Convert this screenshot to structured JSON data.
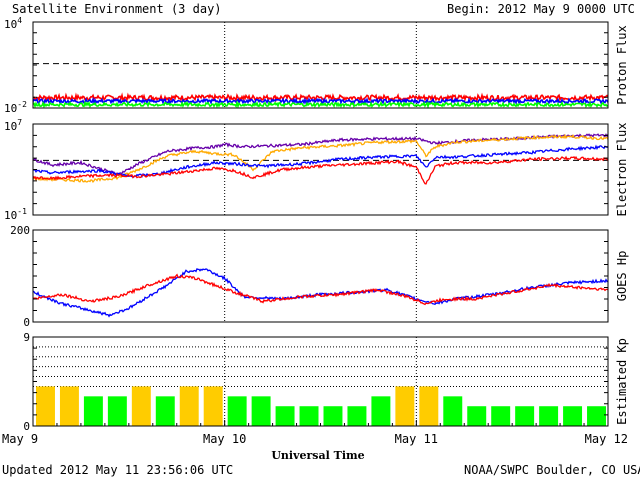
{
  "header": {
    "title": "Satellite Environment (3 day)",
    "begin": "Begin:  2012 May 9 0000 UTC"
  },
  "footer": {
    "updated": "Updated 2012 May 11 23:56:06 UTC",
    "credit": "NOAA/SWPC Boulder, CO USA"
  },
  "colors": {
    "red": "#ff0000",
    "blue": "#0000ff",
    "green": "#00ff00",
    "orange": "#ffaa00",
    "purple": "#6600aa",
    "yellow": "#ffcc00"
  },
  "chart_data": [
    {
      "type": "line",
      "name": "proton-flux",
      "ylabel": "Proton Flux",
      "yscale": "log",
      "yticks": [
        {
          "base": "10",
          "exp": "4"
        },
        {
          "base": "10",
          "exp": "-2"
        }
      ],
      "ylim_log10": [
        -2.2,
        4
      ],
      "threshold_log10": 1,
      "series": [
        {
          "color": "#ff0000",
          "level_log10": -1.45,
          "noise": 0.35
        },
        {
          "color": "#0000ff",
          "level_log10": -1.7,
          "noise": 0.25
        },
        {
          "color": "#00ff00",
          "level_log10": -1.95,
          "noise": 0.25
        }
      ]
    },
    {
      "type": "line",
      "name": "electron-flux",
      "ylabel": "Electron Flux",
      "yscale": "log",
      "yticks": [
        {
          "base": "10",
          "exp": "7"
        },
        {
          "base": "10",
          "exp": "-1"
        }
      ],
      "ylim_log10": [
        -1,
        7
      ],
      "threshold_log10": 3.8,
      "series": [
        {
          "color": "#6600aa",
          "x": [
            0,
            0.1,
            0.25,
            0.4,
            0.45,
            0.55,
            0.7,
            0.85,
            0.95,
            1.0,
            1.1,
            1.25,
            1.4,
            1.6,
            1.8,
            2.0,
            2.1,
            2.3,
            2.5,
            2.7,
            2.9,
            3.0
          ],
          "y": [
            3.9,
            3.4,
            3.6,
            2.8,
            2.6,
            3.5,
            4.6,
            4.9,
            5.0,
            5.2,
            5.0,
            5.1,
            5.2,
            5.6,
            5.7,
            5.7,
            5.3,
            5.6,
            5.7,
            5.9,
            6.0,
            6.0
          ]
        },
        {
          "color": "#ffaa00",
          "x": [
            0,
            0.15,
            0.3,
            0.45,
            0.55,
            0.7,
            0.85,
            0.95,
            1.05,
            1.15,
            1.25,
            1.4,
            1.6,
            1.8,
            2.0,
            2.05,
            2.1,
            2.2,
            2.4,
            2.6,
            2.8,
            3.0
          ],
          "y": [
            2.2,
            2.1,
            2.0,
            2.3,
            3.0,
            4.2,
            4.6,
            4.4,
            4.3,
            3.0,
            4.6,
            4.9,
            5.1,
            5.4,
            5.5,
            4.2,
            5.0,
            5.4,
            5.6,
            5.8,
            5.9,
            5.7
          ]
        },
        {
          "color": "#0000ff",
          "x": [
            0,
            0.1,
            0.2,
            0.35,
            0.5,
            0.65,
            0.8,
            0.95,
            1.05,
            1.2,
            1.4,
            1.6,
            1.8,
            2.0,
            2.05,
            2.1,
            2.2,
            2.4,
            2.6,
            2.8,
            3.0
          ],
          "y": [
            2.9,
            2.7,
            2.8,
            2.9,
            2.4,
            2.6,
            3.2,
            3.6,
            3.5,
            3.3,
            3.5,
            3.9,
            4.1,
            4.2,
            3.2,
            4.1,
            4.1,
            4.3,
            4.5,
            4.8,
            5.0
          ]
        },
        {
          "color": "#ff0000",
          "x": [
            0,
            0.1,
            0.25,
            0.4,
            0.55,
            0.7,
            0.85,
            0.95,
            1.05,
            1.15,
            1.3,
            1.5,
            1.7,
            1.9,
            2.0,
            2.05,
            2.1,
            2.2,
            2.4,
            2.6,
            2.8,
            3.0
          ],
          "y": [
            2.3,
            2.2,
            2.4,
            2.5,
            2.4,
            2.6,
            2.9,
            3.1,
            2.9,
            2.3,
            3.0,
            3.3,
            3.5,
            3.7,
            3.2,
            1.7,
            3.3,
            3.6,
            3.6,
            3.9,
            4.0,
            3.9
          ]
        }
      ]
    },
    {
      "type": "line",
      "name": "goes-hp",
      "ylabel": "GOES Hp",
      "yticks": [
        {
          "label": "200",
          "v": 200
        },
        {
          "label": "0",
          "v": 0
        }
      ],
      "ylim": [
        0,
        200
      ],
      "series": [
        {
          "color": "#0000ff",
          "x": [
            0,
            0.15,
            0.3,
            0.4,
            0.5,
            0.6,
            0.7,
            0.8,
            0.9,
            1.0,
            1.1,
            1.3,
            1.5,
            1.7,
            1.85,
            2.0,
            2.1,
            2.2,
            2.4,
            2.6,
            2.8,
            3.0
          ],
          "y": [
            65,
            40,
            25,
            15,
            30,
            55,
            80,
            110,
            115,
            95,
            55,
            50,
            60,
            65,
            70,
            50,
            40,
            50,
            60,
            75,
            85,
            90
          ]
        },
        {
          "color": "#ff0000",
          "x": [
            0,
            0.15,
            0.3,
            0.45,
            0.6,
            0.75,
            0.85,
            0.95,
            1.05,
            1.2,
            1.4,
            1.6,
            1.8,
            1.95,
            2.05,
            2.15,
            2.3,
            2.5,
            2.7,
            2.85,
            3.0
          ],
          "y": [
            50,
            60,
            45,
            55,
            80,
            100,
            95,
            80,
            65,
            45,
            55,
            60,
            70,
            55,
            40,
            50,
            50,
            65,
            80,
            75,
            70
          ]
        }
      ]
    },
    {
      "type": "bar",
      "name": "estimated-kp",
      "ylabel": "Estimated Kp",
      "yticks": [
        {
          "label": "9",
          "v": 9
        },
        {
          "label": "0",
          "v": 0
        }
      ],
      "ylim": [
        0,
        9
      ],
      "values": [
        4,
        4,
        3,
        3,
        4,
        3,
        4,
        4,
        3,
        3,
        2,
        2,
        2,
        2,
        3,
        4,
        4,
        3,
        2,
        2,
        2,
        2,
        2,
        2
      ],
      "colors": [
        "#ffcc00",
        "#ffcc00",
        "#00ff00",
        "#00ff00",
        "#ffcc00",
        "#00ff00",
        "#ffcc00",
        "#ffcc00",
        "#00ff00",
        "#00ff00",
        "#00ff00",
        "#00ff00",
        "#00ff00",
        "#00ff00",
        "#00ff00",
        "#ffcc00",
        "#ffcc00",
        "#00ff00",
        "#00ff00",
        "#00ff00",
        "#00ff00",
        "#00ff00",
        "#00ff00",
        "#00ff00"
      ],
      "dotted_levels": [
        4,
        5,
        6,
        7,
        8
      ]
    }
  ],
  "xaxis": {
    "title": "Universal Time",
    "labels": [
      "May 9",
      "May 10",
      "May 11",
      "May 12"
    ],
    "day_dividers": [
      1,
      2
    ]
  }
}
